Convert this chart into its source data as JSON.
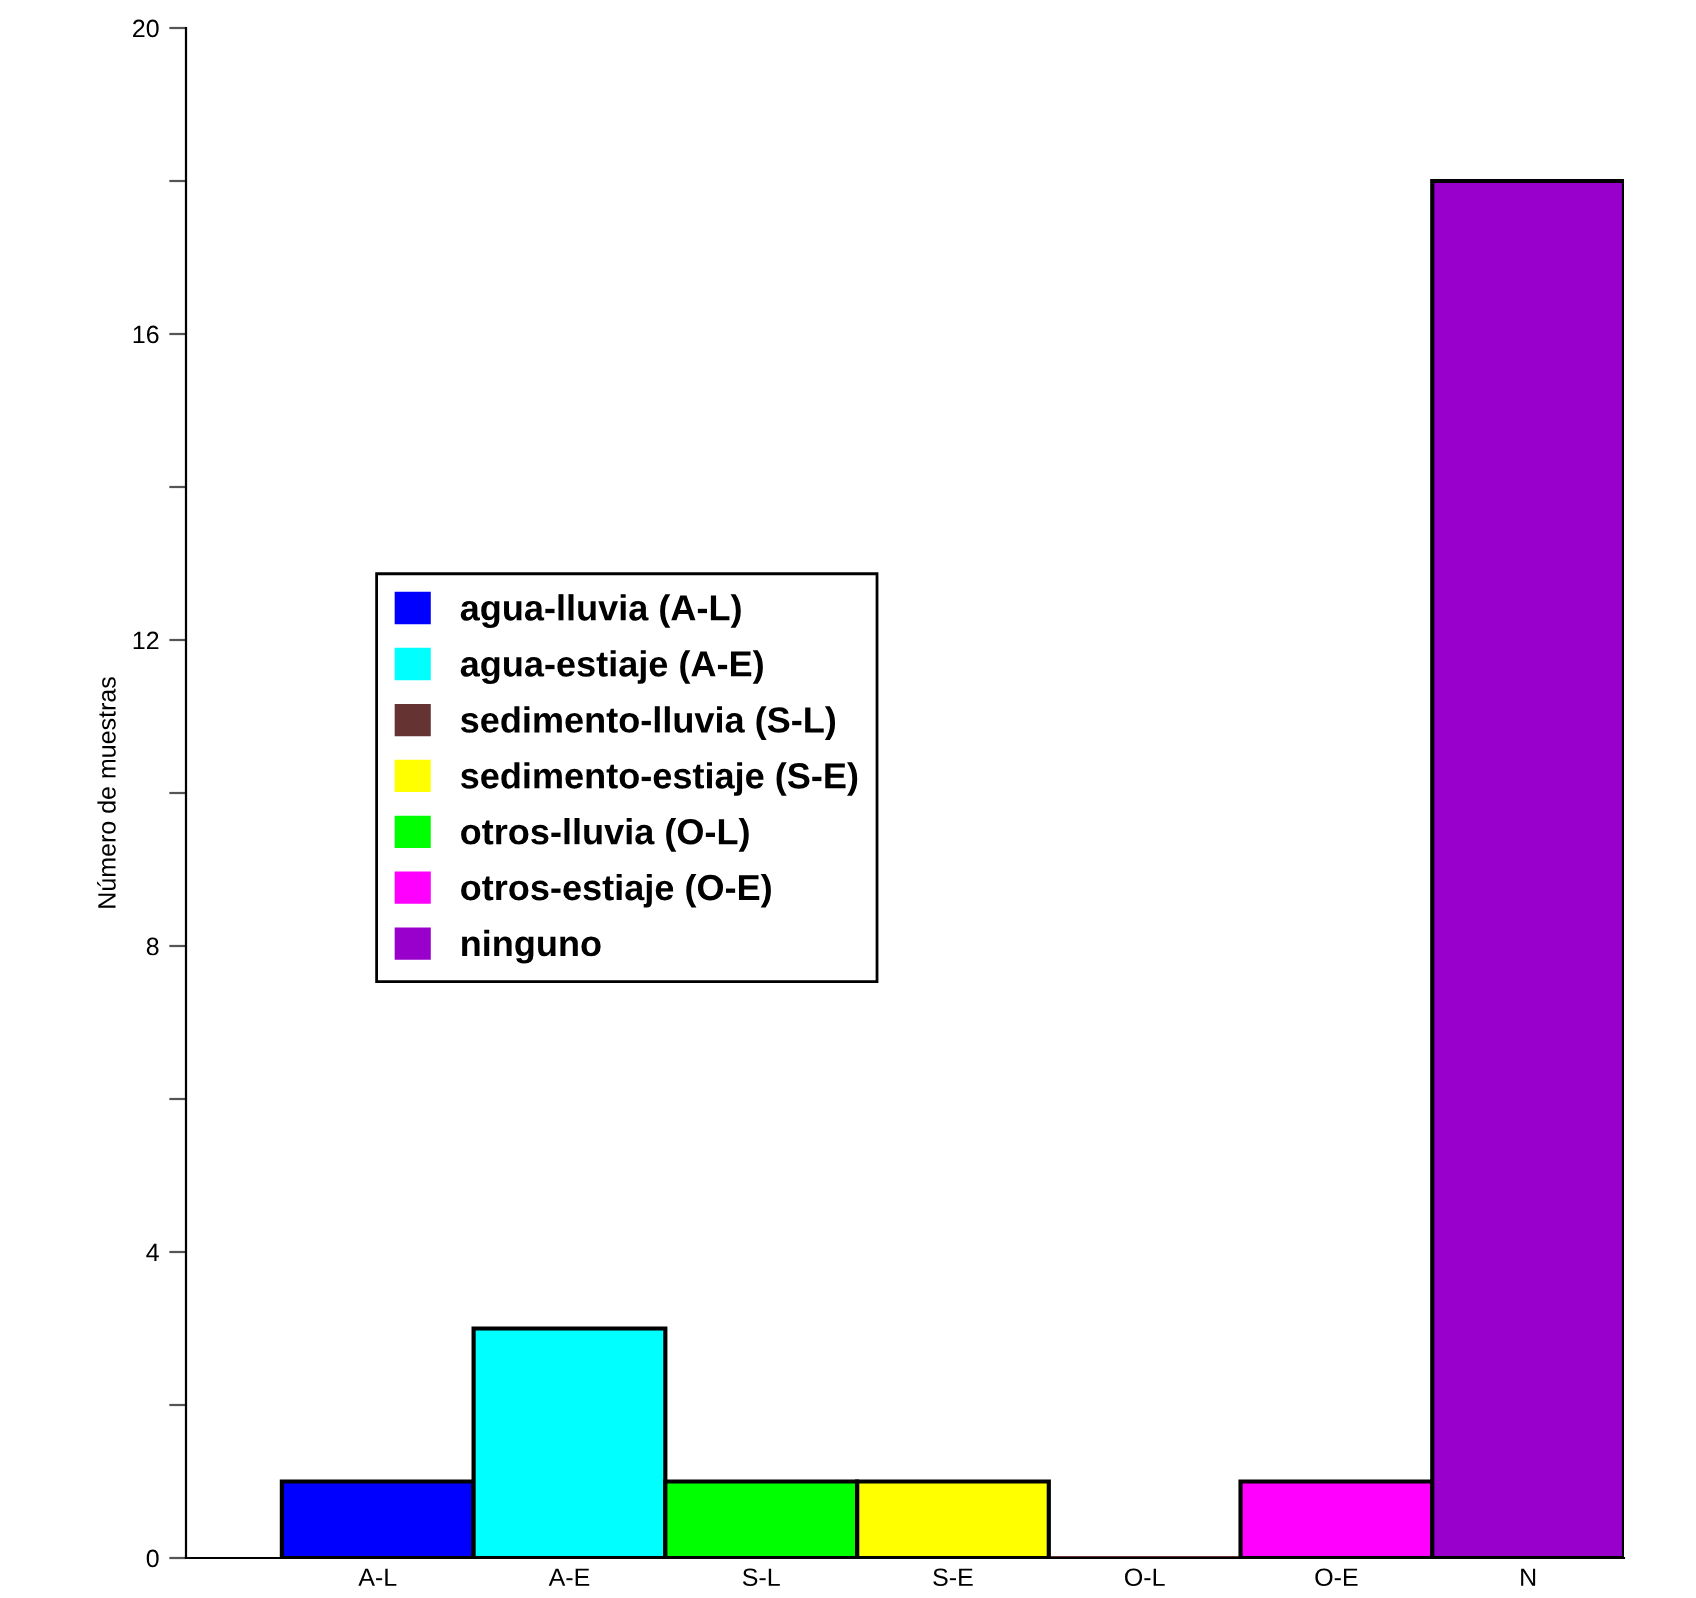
{
  "chart_data": {
    "type": "bar",
    "ylabel": "Número de muestras",
    "categories": [
      "A-L",
      "A-E",
      "S-L",
      "S-E",
      "O-L",
      "O-E",
      "N"
    ],
    "series": [
      {
        "name": "agua-lluvia (A-L)",
        "color": "#0000ff",
        "values": [
          1,
          null,
          null,
          null,
          null,
          null,
          null
        ]
      },
      {
        "name": "agua-estiaje (A-E)",
        "color": "#00ffff",
        "values": [
          null,
          3,
          null,
          null,
          null,
          null,
          null
        ]
      },
      {
        "name": "sedimento-lluvia (S-L)",
        "color": "#663333",
        "values": [
          null,
          null,
          null,
          null,
          0,
          null,
          null
        ]
      },
      {
        "name": "sedimento-estiaje (S-E)",
        "color": "#ffff00",
        "values": [
          null,
          null,
          null,
          1,
          null,
          null,
          null
        ]
      },
      {
        "name": "otros-lluvia (O-L)",
        "color": "#00ff00",
        "values": [
          null,
          null,
          1,
          null,
          null,
          null,
          null
        ]
      },
      {
        "name": "otros-estiaje (O-E)",
        "color": "#ff00ff",
        "values": [
          null,
          null,
          null,
          null,
          null,
          1,
          null
        ]
      },
      {
        "name": "ninguno",
        "color": "#9900cc",
        "values": [
          null,
          null,
          null,
          null,
          null,
          null,
          18
        ]
      }
    ],
    "ylim": [
      0,
      20
    ],
    "yticks": [
      0,
      {
        "value": 2,
        "label": null
      },
      4,
      {
        "value": 6,
        "label": null
      },
      8,
      {
        "value": 10,
        "label": null
      },
      12,
      {
        "value": 14,
        "label": null
      },
      16,
      {
        "value": 18,
        "label": null
      },
      20
    ],
    "grid": false,
    "legend": "left"
  }
}
